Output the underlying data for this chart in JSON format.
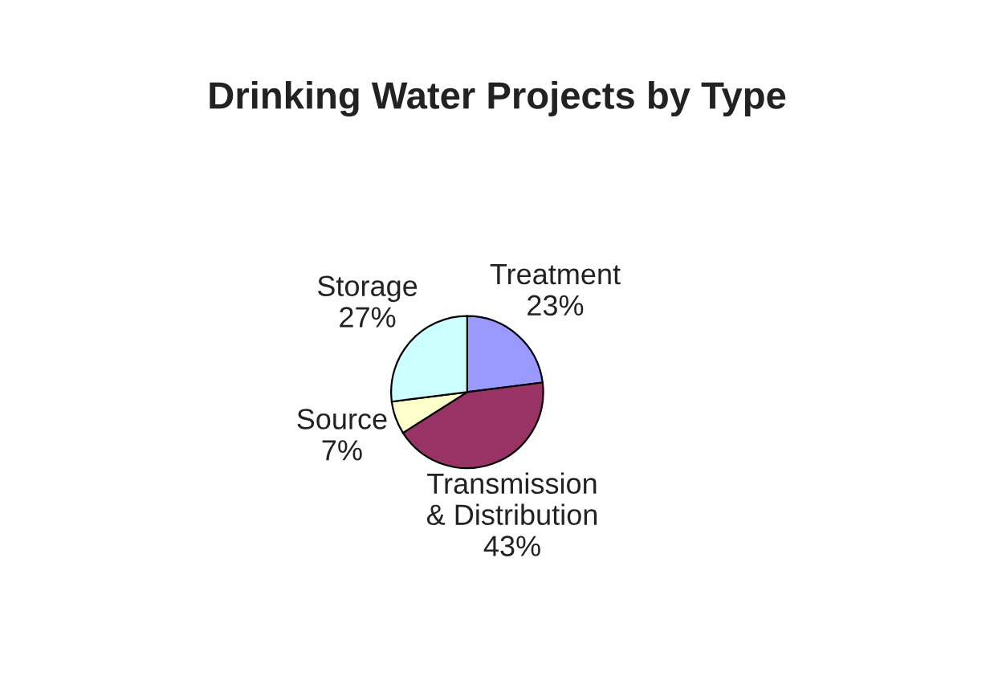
{
  "chart_data": {
    "type": "pie",
    "title": "Drinking Water Projects by Type",
    "categories": [
      "Treatment",
      "Transmission\n& Distribution",
      "Source",
      "Storage"
    ],
    "values": [
      23,
      43,
      7,
      27
    ],
    "colors": [
      "#9999ff",
      "#993366",
      "#ffffcc",
      "#ccffff"
    ],
    "value_labels": [
      "23%",
      "43%",
      "7%",
      "27%"
    ]
  }
}
